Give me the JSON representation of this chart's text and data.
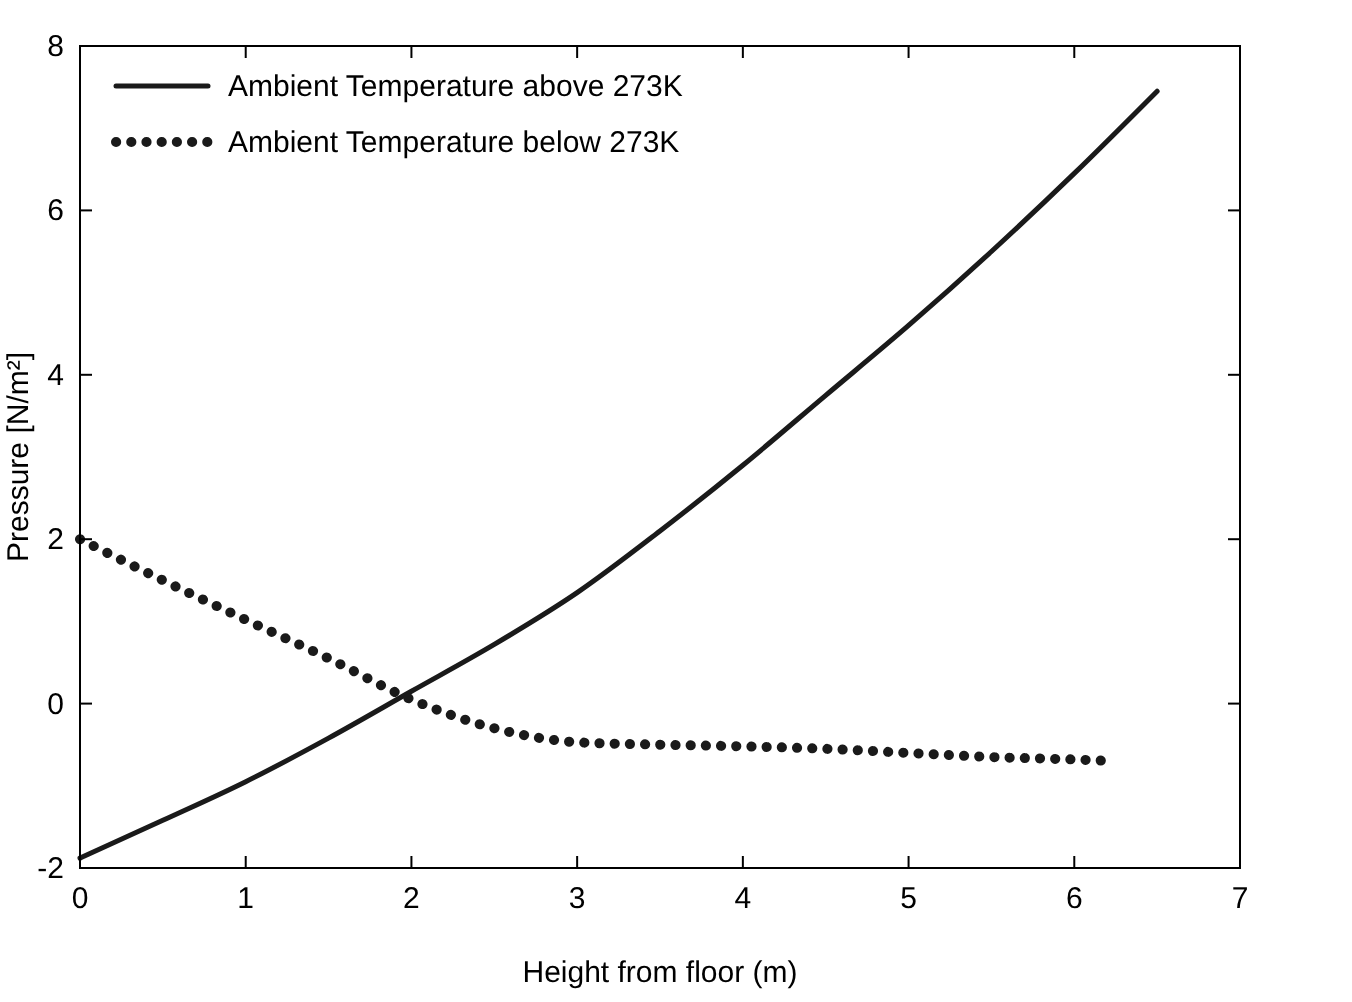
{
  "chart_data": {
    "type": "line",
    "xlabel": "Height from floor (m)",
    "ylabel": "Pressure [N/m²]",
    "xlim": [
      0,
      7
    ],
    "ylim": [
      -2,
      8
    ],
    "xticks": [
      0,
      1,
      2,
      3,
      4,
      5,
      6,
      7
    ],
    "yticks": [
      -2,
      0,
      2,
      4,
      6,
      8
    ],
    "grid": false,
    "legend": "top left",
    "series": [
      {
        "name": "Ambient Temperature above 273K",
        "color": "#1a1a1a",
        "line_style": "solid",
        "x": [
          0,
          0.5,
          1,
          1.5,
          2,
          2.5,
          3,
          3.5,
          4,
          4.5,
          5,
          5.5,
          6,
          6.5
        ],
        "values": [
          -1.88,
          -1.42,
          -0.95,
          -0.42,
          0.15,
          0.72,
          1.35,
          2.1,
          2.9,
          3.75,
          4.6,
          5.5,
          6.45,
          7.45
        ]
      },
      {
        "name": "Ambient Temperature below 273K",
        "color": "#1a1a1a",
        "line_style": "dotted",
        "x": [
          0,
          0.5,
          1,
          1.5,
          2,
          2.5,
          3,
          3.5,
          4,
          4.5,
          5,
          5.5,
          6,
          6.25
        ],
        "values": [
          2.0,
          1.5,
          1.02,
          0.55,
          0.05,
          -0.3,
          -0.47,
          -0.5,
          -0.52,
          -0.55,
          -0.6,
          -0.65,
          -0.68,
          -0.7
        ]
      }
    ]
  }
}
